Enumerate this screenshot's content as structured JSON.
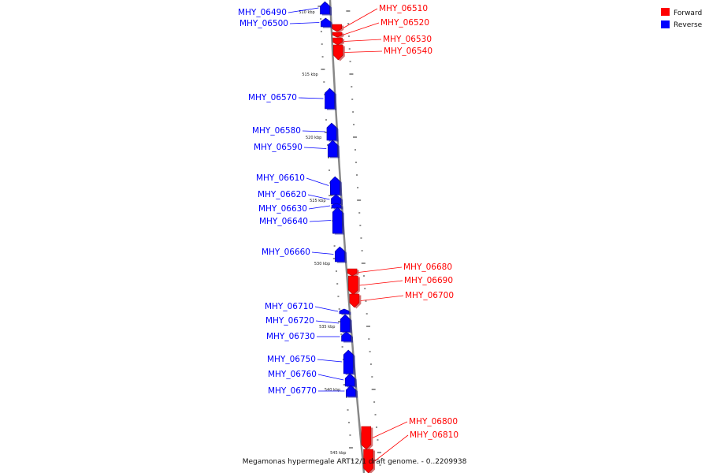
{
  "caption": "Megamonas hypermegale ART12/1 draft genome. - 0..2209938",
  "legend": [
    {
      "label": "Forward",
      "color": "#ff0000"
    },
    {
      "label": "Reverse",
      "color": "#0000ff"
    }
  ],
  "colors": {
    "forward": "#ff0000",
    "reverse": "#0000ff",
    "backbone": "#888888"
  },
  "kbp_labels": [
    "510 kbp",
    "515 kbp",
    "520 kbp",
    "525 kbp",
    "530 kbp",
    "535 kbp",
    "540 kbp",
    "545 kbp"
  ],
  "genes": [
    {
      "name": "MHY_06490",
      "strand": "reverse"
    },
    {
      "name": "MHY_06500",
      "strand": "reverse"
    },
    {
      "name": "MHY_06510",
      "strand": "forward"
    },
    {
      "name": "MHY_06520",
      "strand": "forward"
    },
    {
      "name": "MHY_06530",
      "strand": "forward"
    },
    {
      "name": "MHY_06540",
      "strand": "forward"
    },
    {
      "name": "MHY_06570",
      "strand": "reverse"
    },
    {
      "name": "MHY_06580",
      "strand": "reverse"
    },
    {
      "name": "MHY_06590",
      "strand": "reverse"
    },
    {
      "name": "MHY_06610",
      "strand": "reverse"
    },
    {
      "name": "MHY_06620",
      "strand": "reverse"
    },
    {
      "name": "MHY_06630",
      "strand": "reverse"
    },
    {
      "name": "MHY_06640",
      "strand": "reverse"
    },
    {
      "name": "MHY_06660",
      "strand": "reverse"
    },
    {
      "name": "MHY_06680",
      "strand": "forward"
    },
    {
      "name": "MHY_06690",
      "strand": "forward"
    },
    {
      "name": "MHY_06700",
      "strand": "forward"
    },
    {
      "name": "MHY_06710",
      "strand": "reverse"
    },
    {
      "name": "MHY_06720",
      "strand": "reverse"
    },
    {
      "name": "MHY_06730",
      "strand": "reverse"
    },
    {
      "name": "MHY_06750",
      "strand": "reverse"
    },
    {
      "name": "MHY_06760",
      "strand": "reverse"
    },
    {
      "name": "MHY_06770",
      "strand": "reverse"
    },
    {
      "name": "MHY_06800",
      "strand": "forward"
    },
    {
      "name": "MHY_06810",
      "strand": "forward"
    }
  ]
}
